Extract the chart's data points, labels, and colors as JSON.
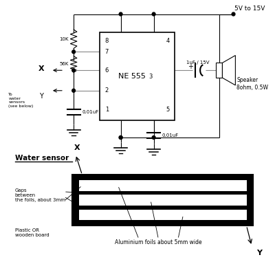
{
  "bg_color": "#ffffff",
  "line_color": "#888888",
  "black": "#000000",
  "white": "#ffffff",
  "vcc_label": "5V to 15V",
  "r1_label": "10K",
  "r2_label": "56K",
  "c1_label": "0.01uF",
  "c2_label": "0.01uF",
  "cap_out_label": "1uF / 15V",
  "speaker_label": "Speaker\n8ohm, 0.5W",
  "water_sensor_title": "Water sensor",
  "gaps_label": "Gaps\nbetween\nthe foils, about 3mm",
  "plastic_label": "Plastic OR\nwooden board",
  "foil_label": "Aluminium foils about 5mm wide",
  "to_sensors_label": "To\nwater\nsensors\n(see below)"
}
